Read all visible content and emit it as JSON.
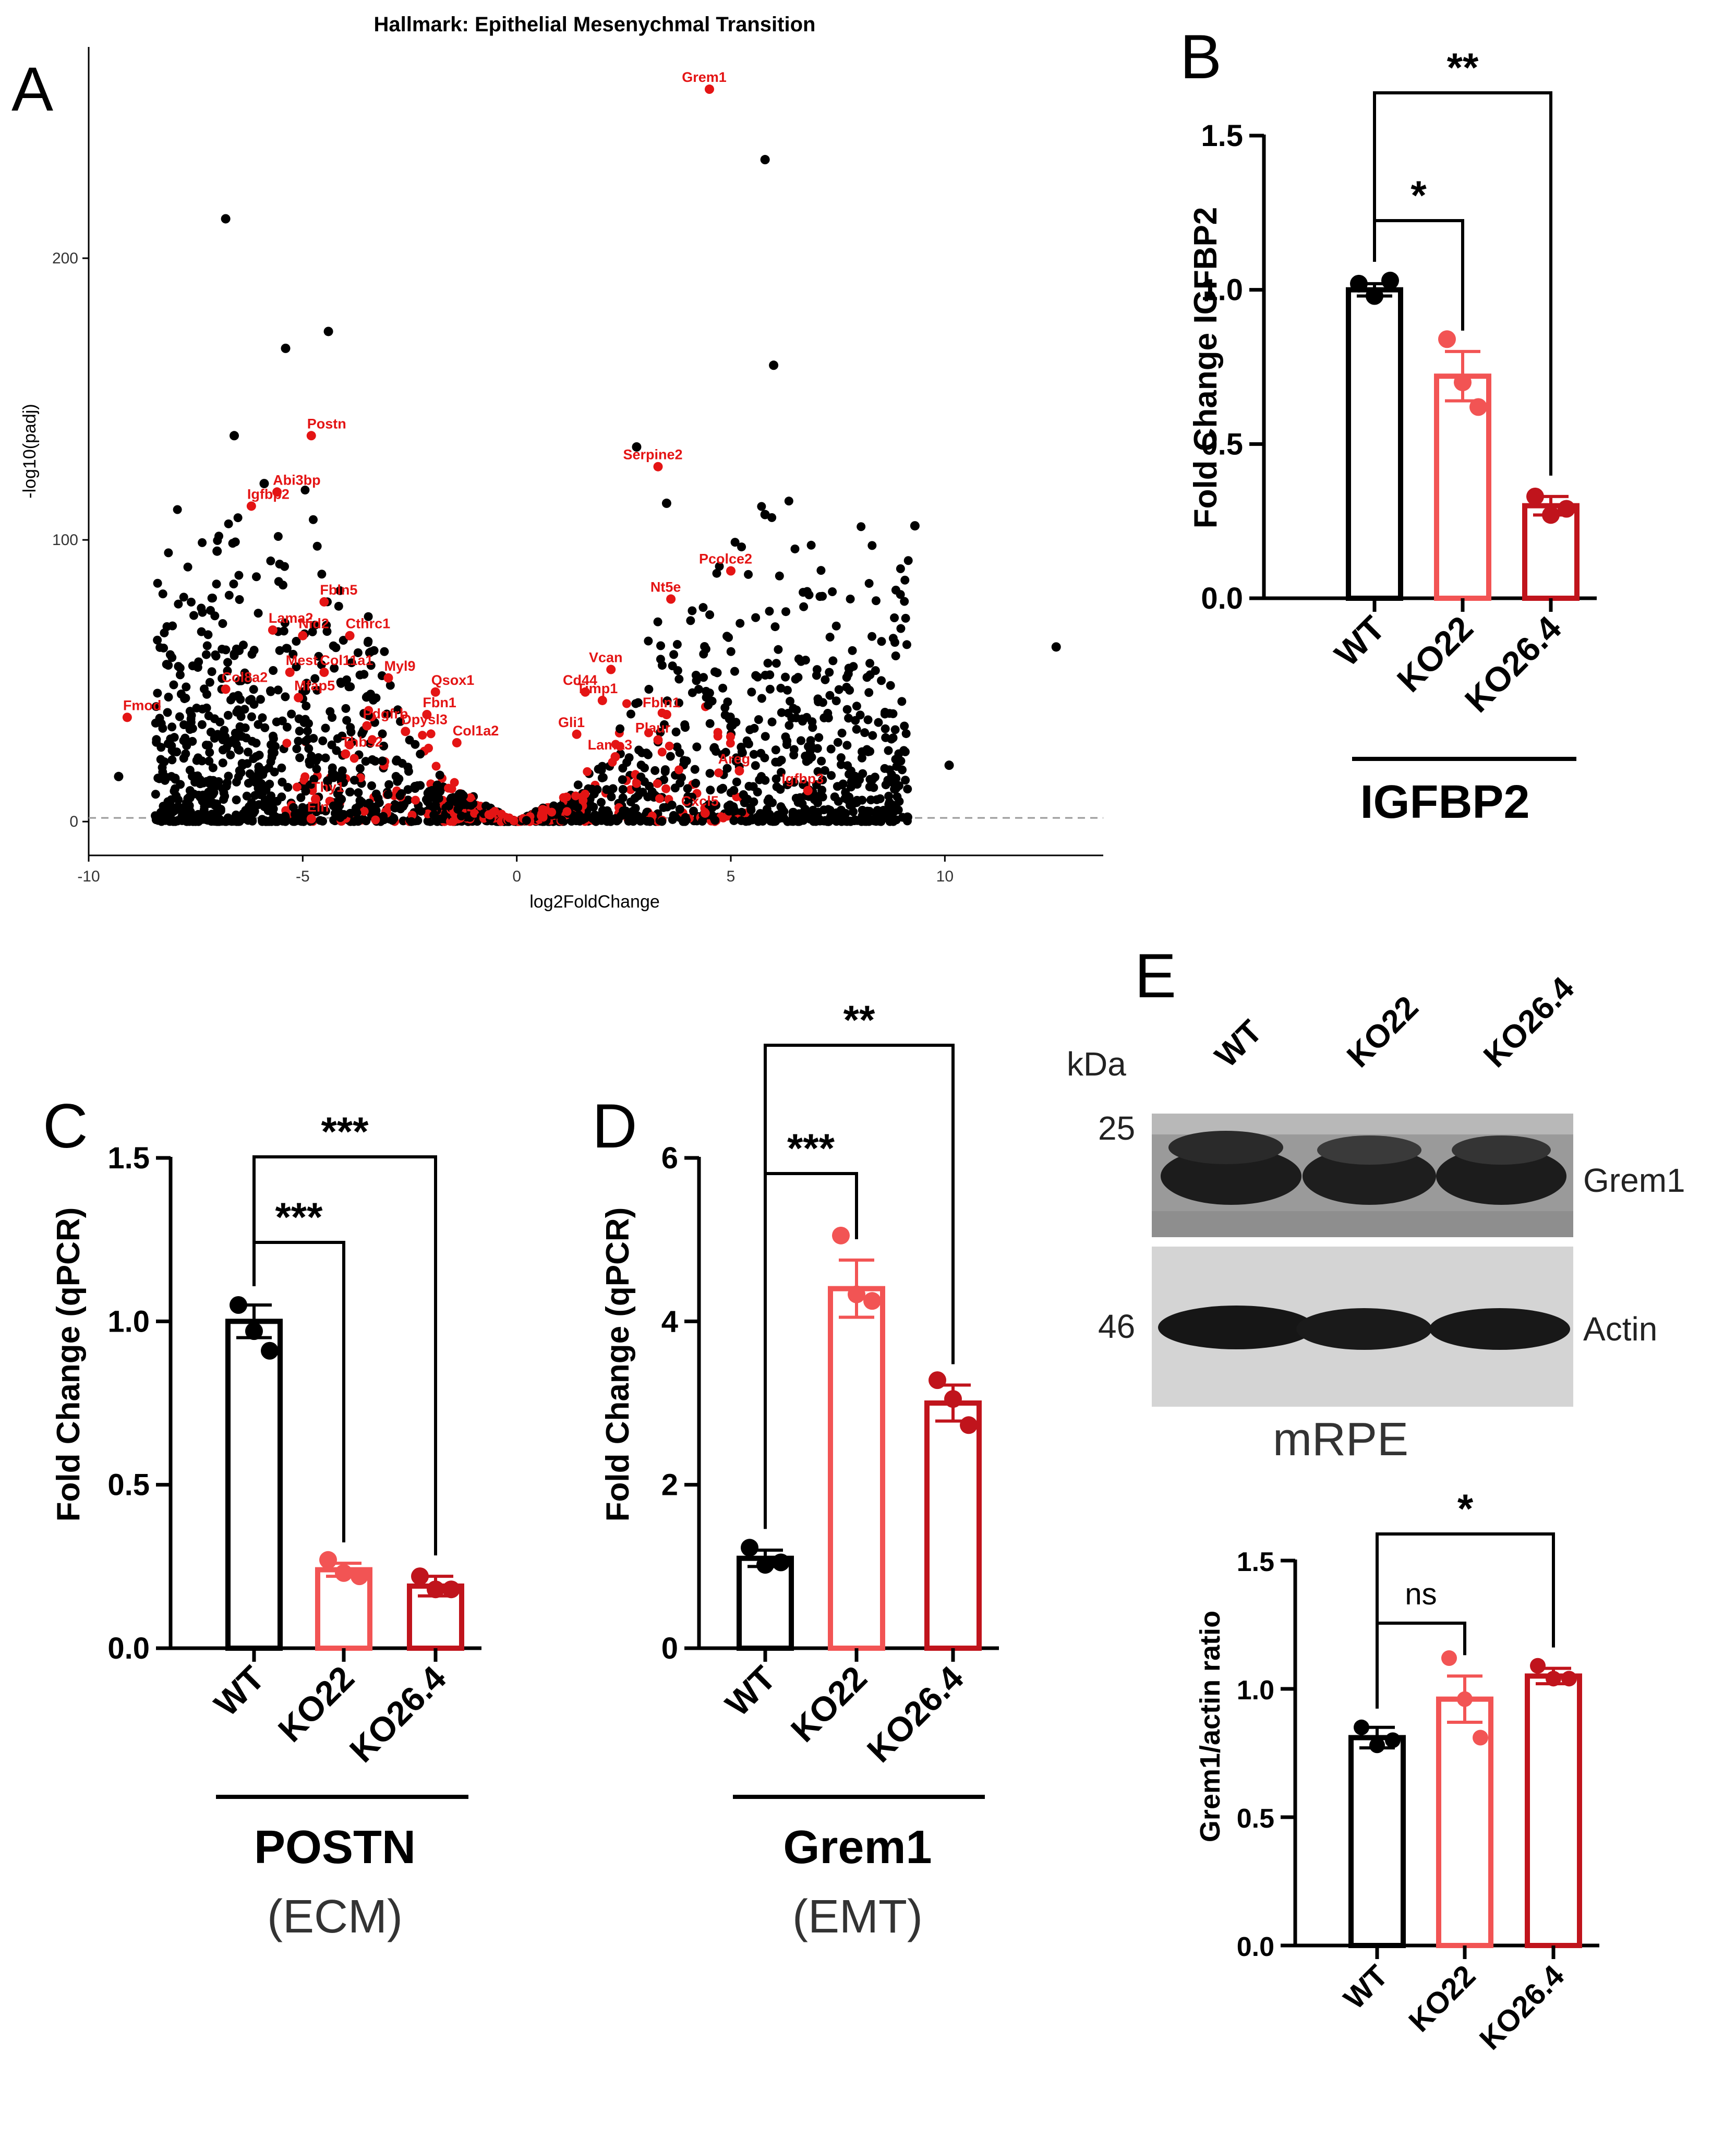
{
  "panels": {
    "A": "A",
    "B": "B",
    "C": "C",
    "D": "D",
    "E": "E"
  },
  "colors": {
    "wt": "#000000",
    "ko22": "#f25454",
    "ko26": "#c0141c",
    "sig_gene": "#e41414",
    "other_gene": "#000000"
  },
  "chart_data": [
    {
      "id": "A",
      "type": "scatter",
      "title": "Hallmark: Epithelial Mesenychmal Transition",
      "xlabel": "log2FoldChange",
      "ylabel": "-log10(padj)",
      "xlim": [
        -10,
        13.7
      ],
      "ylim": [
        -12,
        275
      ],
      "xticks": [
        -10,
        -5,
        0,
        5,
        10
      ],
      "yticks": [
        0,
        100,
        200
      ],
      "threshold_line_y": 1.3,
      "highlighted_genes": [
        {
          "label": "Grem1",
          "x": 4.5,
          "y": 260
        },
        {
          "label": "Postn",
          "x": -4.8,
          "y": 137
        },
        {
          "label": "Serpine2",
          "x": 3.3,
          "y": 126
        },
        {
          "label": "Abi3bp",
          "x": -5.6,
          "y": 117
        },
        {
          "label": "Igfbp2",
          "x": -6.2,
          "y": 112
        },
        {
          "label": "Pcolce2",
          "x": 5.0,
          "y": 89
        },
        {
          "label": "Fbln5",
          "x": -4.5,
          "y": 78
        },
        {
          "label": "Nt5e",
          "x": 3.6,
          "y": 79
        },
        {
          "label": "Lama2",
          "x": -5.7,
          "y": 68
        },
        {
          "label": "Nid2",
          "x": -5.0,
          "y": 66
        },
        {
          "label": "Cthrc1",
          "x": -3.9,
          "y": 66
        },
        {
          "label": "Vcan",
          "x": 2.2,
          "y": 54
        },
        {
          "label": "Mest",
          "x": -5.3,
          "y": 53
        },
        {
          "label": "Col11a1",
          "x": -4.5,
          "y": 53
        },
        {
          "label": "Myl9",
          "x": -3.0,
          "y": 51
        },
        {
          "label": "Cd44",
          "x": 1.6,
          "y": 46
        },
        {
          "label": "Qsox1",
          "x": -1.9,
          "y": 46
        },
        {
          "label": "Timp1",
          "x": 2.0,
          "y": 43
        },
        {
          "label": "Fmod",
          "x": -9.1,
          "y": 37
        },
        {
          "label": "Col8a2",
          "x": -6.8,
          "y": 47
        },
        {
          "label": "Mfap5",
          "x": -5.1,
          "y": 44
        },
        {
          "label": "Fbln1",
          "x": 3.5,
          "y": 38
        },
        {
          "label": "Fbn1",
          "x": -2.1,
          "y": 38
        },
        {
          "label": "Pdgfrb",
          "x": -3.5,
          "y": 34
        },
        {
          "label": "Dpysl3",
          "x": -2.6,
          "y": 32
        },
        {
          "label": "Gli1",
          "x": 1.4,
          "y": 31
        },
        {
          "label": "Plaur",
          "x": 3.3,
          "y": 29
        },
        {
          "label": "Col1a2",
          "x": -1.4,
          "y": 28
        },
        {
          "label": "Thbs2",
          "x": -4.0,
          "y": 24
        },
        {
          "label": "Lama3",
          "x": 2.3,
          "y": 23
        },
        {
          "label": "Areg",
          "x": 5.2,
          "y": 18
        },
        {
          "label": "Igfbp3",
          "x": 6.8,
          "y": 11
        },
        {
          "label": "Thy1",
          "x": -4.7,
          "y": 8
        },
        {
          "label": "Cxcl5",
          "x": 4.4,
          "y": 3
        },
        {
          "label": "Eln",
          "x": -4.8,
          "y": 1
        }
      ],
      "top_points": [
        {
          "x": 5.8,
          "y": 235
        },
        {
          "x": -6.8,
          "y": 214
        },
        {
          "x": -4.4,
          "y": 174
        },
        {
          "x": -5.4,
          "y": 168
        },
        {
          "x": 6.0,
          "y": 162
        },
        {
          "x": -6.6,
          "y": 137
        },
        {
          "x": 2.8,
          "y": 133
        },
        {
          "x": -5.9,
          "y": 120
        },
        {
          "x": 3.5,
          "y": 113
        },
        {
          "x": 5.8,
          "y": 109
        },
        {
          "x": 9.3,
          "y": 105
        },
        {
          "x": 12.6,
          "y": 62
        },
        {
          "x": -7.0,
          "y": 96
        },
        {
          "x": -9.3,
          "y": 16
        },
        {
          "x": 10.1,
          "y": 20
        }
      ]
    },
    {
      "id": "B",
      "type": "bar",
      "ylabel": "Fold Change IGFBP2",
      "ylim": [
        0,
        1.5
      ],
      "yticks": [
        "0.0",
        "0.5",
        "1.0",
        "1.5"
      ],
      "categories": [
        "WT",
        "KO22",
        "KO26.4"
      ],
      "values": [
        1.0,
        0.72,
        0.3
      ],
      "sem": [
        0.02,
        0.08,
        0.03
      ],
      "points": [
        [
          1.02,
          0.98,
          1.03
        ],
        [
          0.84,
          0.7,
          0.62
        ],
        [
          0.33,
          0.27,
          0.29
        ]
      ],
      "comparisons": [
        {
          "from": "WT",
          "to": "KO22",
          "label": "*"
        },
        {
          "from": "WT",
          "to": "KO26.4",
          "label": "**"
        }
      ],
      "gene": "IGFBP2",
      "group": ""
    },
    {
      "id": "C",
      "type": "bar",
      "ylabel": "Fold Change (qPCR)",
      "ylim": [
        0,
        1.5
      ],
      "yticks": [
        "0.0",
        "0.5",
        "1.0",
        "1.5"
      ],
      "categories": [
        "WT",
        "KO22",
        "KO26.4"
      ],
      "values": [
        1.0,
        0.24,
        0.19
      ],
      "sem": [
        0.05,
        0.02,
        0.03
      ],
      "points": [
        [
          1.05,
          0.97,
          0.91
        ],
        [
          0.27,
          0.23,
          0.22
        ],
        [
          0.22,
          0.18,
          0.18
        ]
      ],
      "comparisons": [
        {
          "from": "WT",
          "to": "KO22",
          "label": "***"
        },
        {
          "from": "WT",
          "to": "KO26.4",
          "label": "***"
        }
      ],
      "gene": "POSTN",
      "group": "(ECM)"
    },
    {
      "id": "D",
      "type": "bar",
      "ylabel": "Fold Change (qPCR)",
      "ylim": [
        0,
        6
      ],
      "yticks": [
        "0",
        "2",
        "4",
        "6"
      ],
      "categories": [
        "WT",
        "KO22",
        "KO26.4"
      ],
      "values": [
        1.1,
        4.4,
        3.0
      ],
      "sem": [
        0.1,
        0.35,
        0.22
      ],
      "points": [
        [
          1.23,
          1.02,
          1.05
        ],
        [
          5.05,
          4.33,
          4.25
        ],
        [
          3.28,
          3.05,
          2.73
        ]
      ],
      "comparisons": [
        {
          "from": "WT",
          "to": "KO22",
          "label": "***"
        },
        {
          "from": "WT",
          "to": "KO26.4",
          "label": "**"
        }
      ],
      "gene": "Grem1",
      "group": "(EMT)"
    },
    {
      "id": "E",
      "type": "bar",
      "ylabel": "Grem1/actin ratio",
      "ylim": [
        0,
        1.5
      ],
      "yticks": [
        "0.0",
        "0.5",
        "1.0",
        "1.5"
      ],
      "categories": [
        "WT",
        "KO22",
        "KO26.4"
      ],
      "values": [
        0.81,
        0.96,
        1.05
      ],
      "sem": [
        0.04,
        0.09,
        0.03
      ],
      "points": [
        [
          0.85,
          0.78,
          0.8
        ],
        [
          1.12,
          0.96,
          0.81
        ],
        [
          1.09,
          1.04,
          1.04
        ]
      ],
      "comparisons": [
        {
          "from": "WT",
          "to": "KO22",
          "label": "ns"
        },
        {
          "from": "WT",
          "to": "KO26.4",
          "label": "*"
        }
      ]
    }
  ],
  "blot": {
    "lanes": [
      "WT",
      "KO22",
      "KO26.4"
    ],
    "unit": "kDa",
    "markers": [
      "25",
      "46"
    ],
    "bands": [
      "Grem1",
      "Actin"
    ],
    "caption": "mRPE"
  }
}
